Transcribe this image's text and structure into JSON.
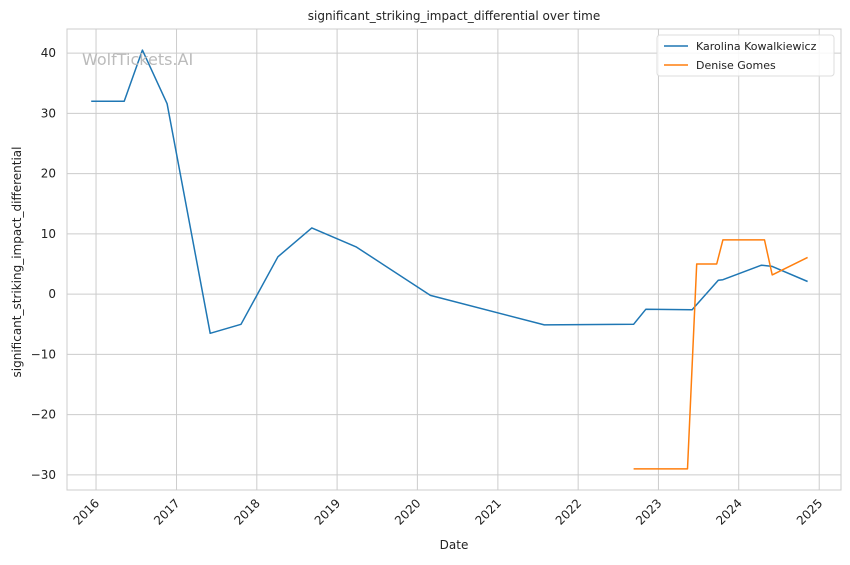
{
  "chart_data": {
    "type": "line",
    "title": "significant_striking_impact_differential over time",
    "xlabel": "Date",
    "ylabel": "significant_striking_impact_differential",
    "watermark": "WolfTickets.AI",
    "grid": true,
    "legend_position": "top-right",
    "x_ticks": [
      "2016",
      "2017",
      "2018",
      "2019",
      "2020",
      "2021",
      "2022",
      "2023",
      "2024",
      "2025"
    ],
    "y_ticks": [
      -30,
      -20,
      -10,
      0,
      10,
      20,
      30,
      40
    ],
    "xlim": [
      "2015-08-22",
      "2025-04-10"
    ],
    "ylim": [
      -32.5,
      44
    ],
    "series": [
      {
        "name": "Karolina Kowalkiewicz",
        "color": "#1f77b4",
        "points": [
          [
            "2015-12-10",
            32.0
          ],
          [
            "2016-05-08",
            32.0
          ],
          [
            "2016-07-30",
            40.5
          ],
          [
            "2016-11-19",
            31.6
          ],
          [
            "2017-06-03",
            -6.5
          ],
          [
            "2017-10-21",
            -5.0
          ],
          [
            "2018-04-07",
            6.2
          ],
          [
            "2018-09-08",
            11.0
          ],
          [
            "2019-03-30",
            7.8
          ],
          [
            "2020-02-29",
            -0.2
          ],
          [
            "2021-07-31",
            -5.1
          ],
          [
            "2022-09-10",
            -5.0
          ],
          [
            "2022-11-05",
            -2.5
          ],
          [
            "2023-06-03",
            -2.6
          ],
          [
            "2023-09-30",
            2.3
          ],
          [
            "2023-10-21",
            2.4
          ],
          [
            "2024-04-13",
            4.8
          ],
          [
            "2024-06-01",
            4.6
          ],
          [
            "2024-11-09",
            2.1
          ]
        ]
      },
      {
        "name": "Denise Gomes",
        "color": "#ff7f0e",
        "points": [
          [
            "2022-09-10",
            -29.0
          ],
          [
            "2023-05-13",
            -29.0
          ],
          [
            "2023-06-24",
            5.0
          ],
          [
            "2023-09-23",
            5.0
          ],
          [
            "2023-10-21",
            9.0
          ],
          [
            "2024-04-27",
            9.0
          ],
          [
            "2024-06-01",
            3.2
          ],
          [
            "2024-11-09",
            6.1
          ]
        ]
      }
    ]
  }
}
